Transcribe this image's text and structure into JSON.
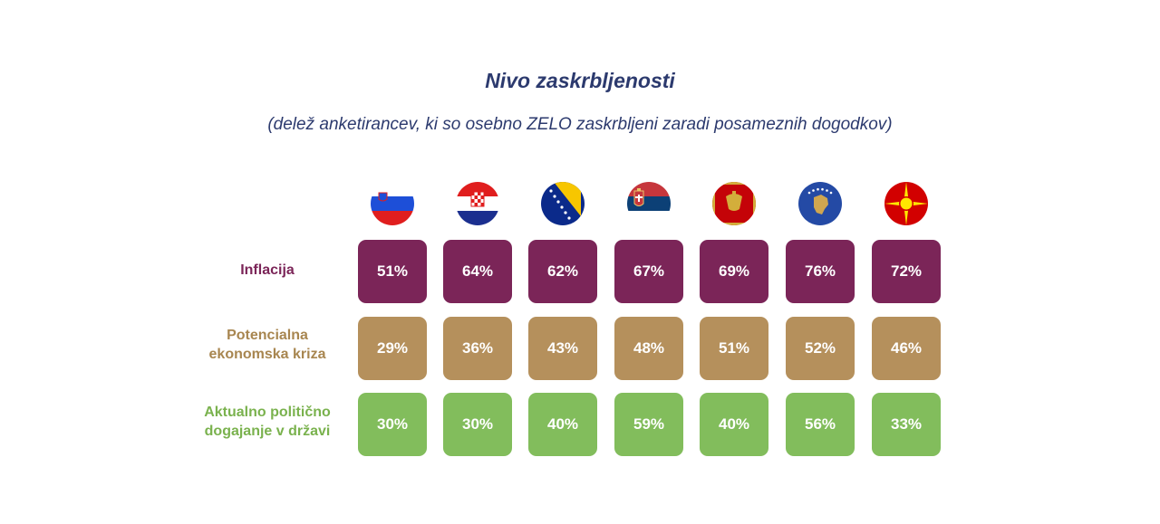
{
  "title": "Nivo zaskrbljenosti",
  "subtitle": "(delež anketirancev, ki so osebno ZELO zaskrbljeni zaradi posameznih dogodkov)",
  "chart_data": {
    "type": "table",
    "unit": "%",
    "columns": [
      {
        "flag": "slovenia-flag-icon"
      },
      {
        "flag": "croatia-flag-icon"
      },
      {
        "flag": "bosnia-flag-icon"
      },
      {
        "flag": "serbia-flag-icon"
      },
      {
        "flag": "montenegro-flag-icon"
      },
      {
        "flag": "kosovo-flag-icon"
      },
      {
        "flag": "north-macedonia-flag-icon"
      }
    ],
    "rows": [
      {
        "label": "Inflacija",
        "color": "#7b2558",
        "text_color": "#7b2558",
        "values": [
          51,
          64,
          62,
          67,
          69,
          76,
          72
        ],
        "display": [
          "51%",
          "64%",
          "62%",
          "67%",
          "69%",
          "76%",
          "72%"
        ]
      },
      {
        "label": "Potencialna ekonomska kriza",
        "color": "#b5905c",
        "text_color": "#a88650",
        "values": [
          29,
          36,
          43,
          48,
          51,
          52,
          46
        ],
        "display": [
          "29%",
          "36%",
          "43%",
          "48%",
          "51%",
          "52%",
          "46%"
        ]
      },
      {
        "label": "Aktualno politično dogajanje v državi",
        "color": "#82bd5c",
        "text_color": "#7ab24e",
        "values": [
          30,
          30,
          40,
          59,
          40,
          56,
          33
        ],
        "display": [
          "30%",
          "30%",
          "40%",
          "59%",
          "40%",
          "56%",
          "33%"
        ]
      }
    ]
  }
}
